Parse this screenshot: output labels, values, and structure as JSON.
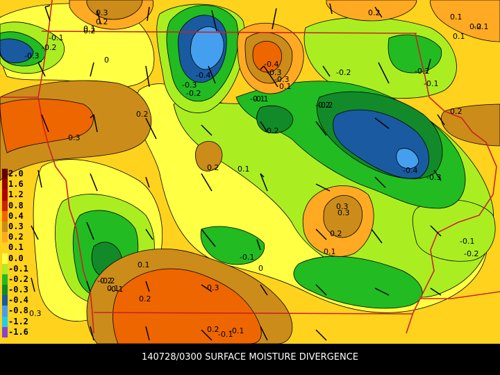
{
  "caption": "140728/0300 SURFACE MOISTURE DIVERGENCE",
  "legend": [
    {
      "label": "2.0",
      "color": "#660000"
    },
    {
      "label": "1.6",
      "color": "#990000"
    },
    {
      "label": "1.2",
      "color": "#b00000"
    },
    {
      "label": "0.8",
      "color": "#cc2200"
    },
    {
      "label": "0.4",
      "color": "#ee6600"
    },
    {
      "label": "0.3",
      "color": "#cc8c1a"
    },
    {
      "label": "0.2",
      "color": "#ffaa22"
    },
    {
      "label": "0.1",
      "color": "#ffd21e"
    },
    {
      "label": "0.0",
      "color": "#ffff44"
    },
    {
      "label": "-0.1",
      "color": "#aaee22"
    },
    {
      "label": "-0.2",
      "color": "#22bb22"
    },
    {
      "label": "-0.3",
      "color": "#128a2a"
    },
    {
      "label": "-0.4",
      "color": "#1a5aa0"
    },
    {
      "label": "-0.8",
      "color": "#44a0ee"
    },
    {
      "label": "-1.2",
      "color": "#22ccee"
    },
    {
      "label": "-1.6",
      "color": "#8844cc"
    }
  ],
  "colors": {
    "background": "#ffd21e",
    "border": "#cc2222",
    "contour": "#000000"
  },
  "contour_labels": [
    "0.3",
    "0.2",
    "0.1",
    "-0.1",
    "-0.2",
    "-0.3",
    "0",
    "-0.3",
    "-0.4",
    "-0.3",
    "-0.2",
    "-0.4",
    "-0.3",
    "0.1",
    "-0.1",
    "-0.2",
    "0.2",
    "0.2",
    "0.1",
    "-0.1",
    "-0.2",
    "-0.2",
    "0.2",
    "-0.1",
    "-0.2",
    "-0.2",
    "-0.4",
    "-0.3",
    "0.3",
    "-0.1",
    "0.2",
    "0.1",
    "0.2",
    "0.1",
    "0.3",
    "0.2",
    "0.1",
    "0.1",
    "-0.1",
    "-0.2",
    "-0.1",
    "-0.2",
    "0.1",
    "-0.1",
    "0",
    "-0.2",
    "0.2",
    "0.3",
    "0.3",
    "0.2",
    "-0.1",
    "0.3",
    "-0.1",
    "0.2"
  ]
}
